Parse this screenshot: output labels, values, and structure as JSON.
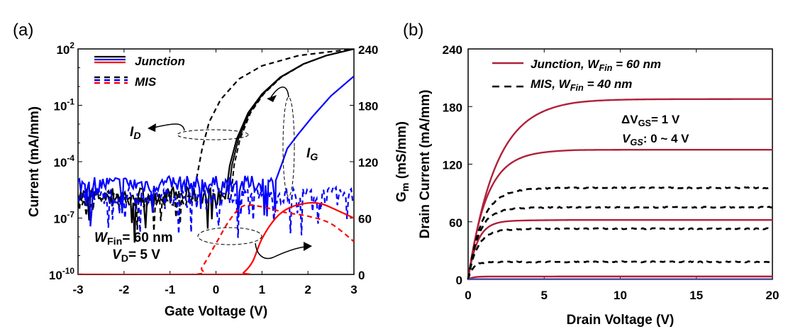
{
  "chart_data": [
    {
      "panel_label": "(a)",
      "type": "line",
      "xlabel": "Gate Voltage (V)",
      "ylabel_left": "Current (mA/mm)",
      "ylabel_right_main": "G",
      "ylabel_right_sub": "m",
      "ylabel_right_unit": " (mS/mm)",
      "xlim": [
        -3,
        3
      ],
      "ylim_left_log10": [
        -10,
        2
      ],
      "ylim_right": [
        0,
        240
      ],
      "xticks": [
        "-3",
        "-2",
        "-1",
        "0",
        "1",
        "2",
        "3"
      ],
      "yticks_left_exp": [
        "2",
        "-1",
        "-4",
        "-7",
        "-10"
      ],
      "yticks_left_base": "10",
      "yticks_right": [
        "240",
        "180",
        "120",
        "60",
        "0"
      ],
      "legend": [
        {
          "label": "Junction",
          "style": "solid"
        },
        {
          "label": "MIS",
          "style": "dashed"
        }
      ],
      "annotations": {
        "id_main": "I",
        "id_sub": "D",
        "ig_main": "I",
        "ig_sub": "G",
        "wfin_main": "W",
        "wfin_sub": "Fin",
        "wfin_rest": "= 60 nm",
        "vd_main": "V",
        "vd_sub": "D",
        "vd_rest": "= 5 V"
      },
      "series": [
        {
          "name": "Junction I_D",
          "axis": "left_log10",
          "color": "#000000",
          "dash": false,
          "noise_floor_log10": -5.8,
          "noise_until": 0.2,
          "points": [
            [
              0.2,
              -6
            ],
            [
              0.3,
              -4.2
            ],
            [
              0.45,
              -2.8
            ],
            [
              0.7,
              -1.4
            ],
            [
              1.0,
              -0.4
            ],
            [
              1.4,
              0.5
            ],
            [
              1.9,
              1.2
            ],
            [
              2.4,
              1.65
            ],
            [
              3,
              2
            ]
          ]
        },
        {
          "name": "MIS I_D",
          "axis": "left_log10",
          "color": "#000000",
          "dash": true,
          "noise_floor_log10": -6.0,
          "noise_until": -0.5,
          "points": [
            [
              -0.5,
              -6
            ],
            [
              -0.4,
              -4.6
            ],
            [
              -0.3,
              -3.3
            ],
            [
              -0.15,
              -1.9
            ],
            [
              0.1,
              -0.7
            ],
            [
              0.5,
              0.4
            ],
            [
              1.0,
              1.1
            ],
            [
              1.8,
              1.65
            ],
            [
              3,
              2
            ]
          ]
        },
        {
          "name": "Junction I_G",
          "axis": "left_log10",
          "color": "#0000ff",
          "dash": false,
          "noise_floor_log10": -5.2,
          "noise_until": 1.3,
          "points": [
            [
              1.3,
              -5
            ],
            [
              1.45,
              -4
            ],
            [
              1.55,
              -3.3
            ],
            [
              1.8,
              -2.5
            ],
            [
              2.1,
              -1.6
            ],
            [
              2.5,
              -0.5
            ],
            [
              3,
              0.55
            ]
          ]
        },
        {
          "name": "MIS I_G",
          "axis": "left_log10",
          "color": "#0000ff",
          "dash": true,
          "noise_floor_log10": -5.8,
          "noise_until": 3,
          "points": []
        },
        {
          "name": "Junction G_m",
          "axis": "right",
          "color": "#ff0000",
          "dash": false,
          "points": [
            [
              -3,
              0
            ],
            [
              0.45,
              0
            ],
            [
              0.6,
              2
            ],
            [
              0.8,
              14
            ],
            [
              1.0,
              38
            ],
            [
              1.3,
              60
            ],
            [
              1.6,
              71
            ],
            [
              2.0,
              76
            ],
            [
              2.3,
              75
            ],
            [
              2.6,
              69
            ],
            [
              3,
              60
            ]
          ]
        },
        {
          "name": "MIS G_m",
          "axis": "right",
          "color": "#ff0000",
          "dash": true,
          "points": [
            [
              -3,
              0
            ],
            [
              -0.5,
              0
            ],
            [
              -0.3,
              8
            ],
            [
              0,
              33
            ],
            [
              0.3,
              58
            ],
            [
              0.6,
              73
            ],
            [
              1.0,
              72
            ],
            [
              1.5,
              66
            ],
            [
              2.0,
              62
            ],
            [
              2.5,
              54
            ],
            [
              3,
              35
            ]
          ]
        }
      ]
    },
    {
      "panel_label": "(b)",
      "type": "line",
      "xlabel": "Drain Voltage (V)",
      "ylabel": "Drain Current (mA/mm)",
      "xlim": [
        0,
        20
      ],
      "ylim": [
        0,
        240
      ],
      "xticks": [
        "0",
        "5",
        "10",
        "15",
        "20"
      ],
      "yticks": [
        "240",
        "180",
        "120",
        "60",
        "0"
      ],
      "legend": [
        {
          "main": "Junction, W",
          "sub": "Fin",
          "rest": " = 60 nm",
          "style": "solid",
          "color": "#b0203a"
        },
        {
          "main": "MIS, W",
          "sub": "Fin",
          "rest": " = 40 nm",
          "style": "dashed",
          "color": "#000000"
        }
      ],
      "annotations": {
        "delta_main": "ΔV",
        "delta_sub": "GS",
        "delta_rest": "= 1 V",
        "range_main": "V",
        "range_sub": "GS",
        "range_rest": ": 0 ~ 4 V"
      },
      "series": [
        {
          "name": "Junction VGS=4",
          "color": "#b0203a",
          "dash": false,
          "sat": 185,
          "knee": 1.8
        },
        {
          "name": "Junction VGS=3",
          "color": "#b0203a",
          "dash": false,
          "sat": 133,
          "knee": 1.2
        },
        {
          "name": "Junction VGS=2",
          "color": "#b0203a",
          "dash": false,
          "sat": 61,
          "knee": 0.6
        },
        {
          "name": "Junction VGS=1",
          "color": "#b0203a",
          "dash": false,
          "sat": 3,
          "knee": 0.3
        },
        {
          "name": "MIS VGS=4",
          "color": "#000000",
          "dash": true,
          "sat": 94,
          "knee": 0.9
        },
        {
          "name": "MIS VGS=3",
          "color": "#000000",
          "dash": true,
          "sat": 74,
          "knee": 0.7
        },
        {
          "name": "MIS VGS=2",
          "color": "#000000",
          "dash": true,
          "sat": 52,
          "knee": 0.6
        },
        {
          "name": "MIS VGS=1",
          "color": "#000000",
          "dash": true,
          "sat": 18,
          "knee": 0.3
        },
        {
          "name": "VGS=0",
          "color": "#5050a0",
          "dash": false,
          "sat": 0.3,
          "knee": 0.2
        }
      ]
    }
  ]
}
